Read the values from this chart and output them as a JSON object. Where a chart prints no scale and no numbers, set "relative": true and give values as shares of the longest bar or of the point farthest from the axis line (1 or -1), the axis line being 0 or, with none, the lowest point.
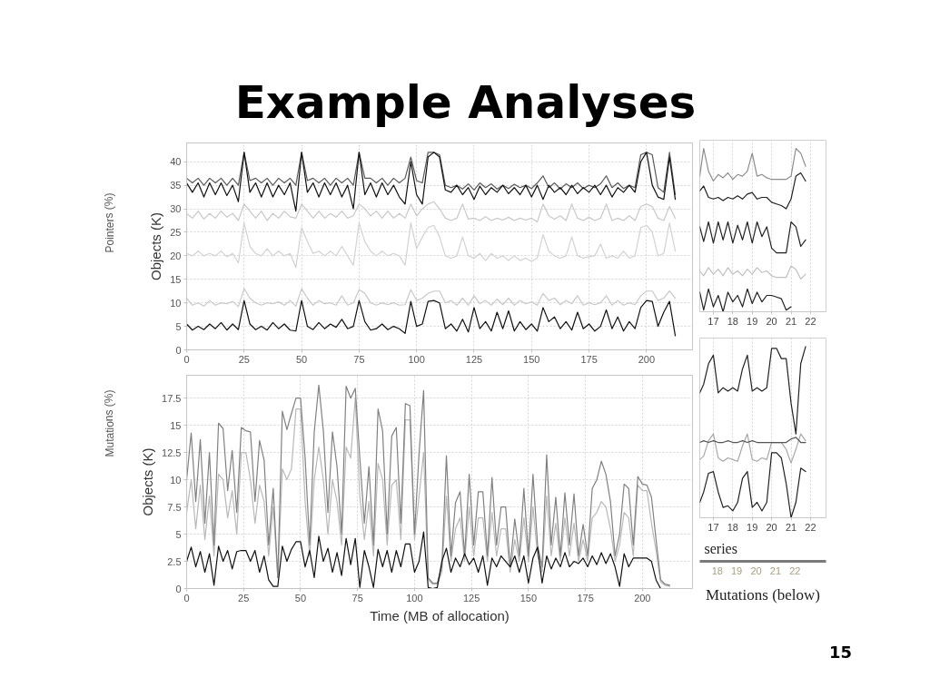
{
  "chart_data": [
    {
      "type": "line",
      "title": "Example Analyses",
      "ylabel": "Objects (K)",
      "xlim": [
        0,
        220
      ],
      "ylim": [
        0,
        44
      ],
      "xticks": [
        0,
        25,
        50,
        75,
        100,
        125,
        150,
        175,
        200
      ],
      "yticks": [
        0,
        5,
        10,
        15,
        20,
        25,
        30,
        35,
        40
      ],
      "grid": true,
      "x": [
        0,
        2.5,
        5,
        7.5,
        10,
        12.5,
        15,
        17.5,
        20,
        22.5,
        25,
        27.5,
        30,
        32.5,
        35,
        37.5,
        40,
        42.5,
        45,
        47.5,
        50,
        52.5,
        55,
        57.5,
        60,
        62.5,
        65,
        67.5,
        70,
        72.5,
        75,
        77.5,
        80,
        82.5,
        85,
        87.5,
        90,
        92.5,
        95,
        97.5,
        100,
        102.5,
        105,
        107.5,
        110,
        112.5,
        115,
        117.5,
        120,
        122.5,
        125,
        127.5,
        130,
        132.5,
        135,
        137.5,
        140,
        142.5,
        145,
        147.5,
        150,
        152.5,
        155,
        157.5,
        160,
        162.5,
        165,
        167.5,
        170,
        172.5,
        175,
        177.5,
        180,
        182.5,
        185,
        187.5,
        190,
        192.5,
        195,
        197.5,
        200,
        202.5,
        205,
        207.5,
        210,
        212.5
      ],
      "series": [
        {
          "color": "#c8c8c8",
          "values": [
            29,
            28,
            29.5,
            27.8,
            29,
            28,
            29.5,
            28.2,
            29,
            27.5,
            31,
            29.5,
            28,
            29.5,
            27.5,
            29,
            28,
            29.5,
            28.3,
            28,
            31,
            29.5,
            28,
            29.5,
            28,
            29,
            28.2,
            29.5,
            28,
            28.5,
            31,
            30,
            28.5,
            29.5,
            28,
            29.5,
            28,
            29,
            28,
            31,
            28.5,
            30,
            31,
            31.5,
            30,
            28,
            27.5,
            28,
            31,
            27.8,
            28,
            27.5,
            28.3,
            27.5,
            28,
            27.6,
            28.2,
            27.5,
            28,
            27.6,
            28,
            27.2,
            31,
            28.5,
            27.8,
            28.5,
            27.5,
            31,
            28,
            27.5,
            28.2,
            27.5,
            28,
            31,
            27.5,
            28,
            27.5,
            28.5,
            27.5,
            30.5,
            31,
            30.5,
            28,
            27.5,
            30.5,
            28
          ]
        },
        {
          "color": "#d2d2d2",
          "values": [
            20.5,
            20,
            21,
            20,
            20.5,
            20,
            21,
            19.8,
            20.5,
            18.5,
            27,
            22,
            20.5,
            20,
            21.5,
            20,
            21,
            20,
            20.5,
            17.5,
            26,
            23,
            20.5,
            21,
            20,
            21,
            20,
            22,
            20,
            18,
            27,
            23,
            21,
            20,
            21,
            20,
            20.5,
            20,
            18,
            27,
            21.5,
            24,
            26,
            26.5,
            24,
            20,
            19.5,
            20,
            24,
            20,
            19.5,
            20.5,
            19,
            20.5,
            19.5,
            20,
            19,
            20,
            19,
            19.5,
            18.8,
            19.5,
            24.5,
            21,
            20,
            19.5,
            20,
            24,
            20,
            19.5,
            19.8,
            20,
            22.5,
            19.5,
            20,
            19.5,
            21,
            19.5,
            20,
            26,
            26.5,
            25,
            20,
            20.5,
            27,
            21
          ]
        },
        {
          "color": "#c8c8c8",
          "values": [
            11,
            9.5,
            10,
            9.3,
            10.5,
            9.5,
            10,
            9.8,
            10.3,
            9.2,
            13,
            11,
            10,
            9.5,
            10,
            9.8,
            10.2,
            9.5,
            10.5,
            9.3,
            13,
            11,
            9.5,
            10.5,
            9.8,
            10,
            9.5,
            11.5,
            9.5,
            10,
            12.8,
            12,
            10,
            9.5,
            10,
            9.6,
            10,
            9.5,
            9.6,
            12.8,
            10.5,
            11,
            12,
            12.5,
            12.5,
            10,
            10.5,
            9.5,
            11,
            9.5,
            11.5,
            9.8,
            10.5,
            9.5,
            10.8,
            9.6,
            11,
            9.5,
            10.5,
            9.8,
            10.2,
            9.5,
            12,
            10.5,
            11,
            9.6,
            10.5,
            9.8,
            11.5,
            9.5,
            10,
            9.6,
            10,
            11.5,
            9.5,
            10.5,
            9.5,
            10,
            9.6,
            11.5,
            12.5,
            12.5,
            10.5,
            11,
            12.5,
            11
          ]
        },
        {
          "color": "#5a5a5a",
          "values": [
            36.5,
            35.5,
            36.5,
            35,
            36.5,
            35.5,
            36.5,
            35,
            36.5,
            35,
            42,
            36,
            36.5,
            35.5,
            36.5,
            35,
            36.5,
            35.5,
            36.5,
            35,
            42,
            36,
            36.5,
            35.5,
            36.5,
            35,
            36.5,
            35.5,
            36.5,
            35,
            42,
            36.5,
            36.5,
            35.5,
            36.5,
            35,
            36.5,
            35.5,
            36.5,
            41,
            36,
            35.5,
            42,
            42,
            41.5,
            35,
            34.5,
            35,
            34.2,
            35.3,
            34,
            35.5,
            34.5,
            35.3,
            34.2,
            35,
            34.3,
            35.2,
            34.5,
            35,
            34.3,
            35.5,
            37,
            34.5,
            35.5,
            34.2,
            35.3,
            34.5,
            35.5,
            34.3,
            35,
            34.5,
            35.3,
            37,
            34.5,
            35.5,
            34.3,
            35,
            34.5,
            41.5,
            42,
            41.5,
            34.5,
            33.5,
            42,
            33
          ]
        },
        {
          "color": "#111111",
          "values": [
            35.5,
            33.5,
            35.5,
            32.5,
            35.5,
            33,
            35.5,
            32.8,
            35,
            31.5,
            42,
            33.5,
            35.5,
            32.5,
            35.5,
            32.5,
            35,
            33,
            35.5,
            29.5,
            42,
            33.5,
            35.5,
            32.5,
            35.5,
            33,
            35.5,
            32.5,
            35,
            30,
            42,
            33,
            35.5,
            32.5,
            35.5,
            33,
            35,
            32.5,
            31,
            40,
            33,
            31,
            41,
            42,
            41,
            34,
            33.5,
            35,
            33,
            34.5,
            32,
            34.8,
            33,
            34.5,
            33.5,
            35,
            33.2,
            34.5,
            33,
            35,
            32.5,
            35,
            32,
            35,
            33.5,
            34.5,
            33,
            35,
            33.2,
            34.5,
            33.5,
            35,
            33,
            35,
            32.5,
            34.5,
            33.5,
            35,
            33.5,
            40,
            42,
            35,
            32.5,
            32,
            41,
            32
          ]
        },
        {
          "color": "#111111",
          "values": [
            5.5,
            4.2,
            5,
            4.3,
            5.5,
            4.5,
            5.8,
            4.2,
            5.5,
            4.3,
            10.5,
            5.5,
            4.3,
            5,
            4.2,
            5.8,
            4.5,
            5.5,
            4.2,
            4,
            10.5,
            5,
            4.3,
            5.8,
            4.5,
            5.5,
            4.8,
            6.5,
            4.5,
            5,
            10.5,
            6,
            4.2,
            4.5,
            5.5,
            4.3,
            5,
            4.5,
            3.5,
            10.3,
            5,
            5.5,
            10.3,
            10.5,
            10,
            4.5,
            5.5,
            4,
            6.5,
            3.8,
            9,
            4.5,
            6,
            4,
            8,
            4.5,
            8.3,
            4,
            6,
            4.3,
            5.5,
            4,
            9,
            6,
            7,
            4.5,
            6,
            4.2,
            8,
            4.5,
            5.5,
            4,
            5,
            8.5,
            4.5,
            7,
            4,
            6,
            4.5,
            9,
            10.5,
            10.3,
            5,
            8,
            10.3,
            3
          ]
        }
      ]
    },
    {
      "type": "line",
      "xlabel": "Time (MB of allocation)",
      "ylabel": "Objects (K)",
      "xlim": [
        0,
        222
      ],
      "ylim": [
        0,
        19.6
      ],
      "xticks": [
        0,
        25,
        50,
        75,
        100,
        125,
        150,
        175,
        200
      ],
      "yticks": [
        0,
        2.5,
        5,
        7.5,
        10,
        12.5,
        15,
        17.5
      ],
      "grid": true,
      "x": [
        0,
        2,
        4,
        6,
        8,
        10,
        12,
        14,
        16,
        18,
        20,
        22,
        24,
        26,
        28,
        30,
        32,
        34,
        36,
        38,
        40,
        42,
        44,
        46,
        48,
        50,
        52,
        54,
        56,
        58,
        60,
        62,
        64,
        66,
        68,
        70,
        72,
        74,
        76,
        78,
        80,
        82,
        84,
        86,
        88,
        90,
        92,
        94,
        96,
        98,
        100,
        102,
        104,
        106,
        108,
        110,
        112,
        114,
        116,
        118,
        120,
        122,
        124,
        126,
        128,
        130,
        132,
        134,
        136,
        138,
        140,
        142,
        144,
        146,
        148,
        150,
        152,
        154,
        156,
        158,
        160,
        162,
        164,
        166,
        168,
        170,
        172,
        174,
        176,
        178,
        180,
        182,
        184,
        186,
        188,
        190,
        192,
        194,
        196,
        198,
        200,
        202,
        204,
        206,
        208,
        210,
        212
      ],
      "series": [
        {
          "color": "#b8b8b8",
          "values": [
            7,
            10,
            5.5,
            9.5,
            4.5,
            8.5,
            3,
            10.5,
            10,
            6.5,
            9,
            5,
            12.5,
            12.5,
            10,
            6,
            9.5,
            8,
            3,
            7.5,
            1,
            11,
            10,
            11,
            16.5,
            16.5,
            8,
            3,
            10,
            13,
            10,
            5,
            10,
            8,
            4,
            13,
            12,
            17.5,
            8.5,
            4.5,
            8,
            3,
            11.5,
            10,
            4,
            9.5,
            10,
            4.5,
            15.5,
            15.5,
            4.5,
            8.5,
            12.5,
            0.8,
            0.4,
            0.4,
            1.5,
            8.5,
            2.5,
            5.5,
            6.5,
            2.5,
            7.5,
            3,
            6.5,
            6.5,
            2.5,
            7,
            3,
            5.5,
            5.5,
            1.5,
            4.5,
            2.5,
            6.5,
            2.5,
            7.5,
            3,
            1.5,
            8.5,
            3,
            6,
            2.5,
            6.5,
            3,
            6,
            2.5,
            4.5,
            2.5,
            6.5,
            7,
            8,
            7.5,
            5.5,
            2.5,
            4,
            7,
            6.5,
            3,
            9.5,
            9,
            9,
            6,
            3.5,
            0.6,
            0.3,
            0.2
          ]
        },
        {
          "color": "#808080",
          "values": [
            10,
            14.3,
            8,
            13.7,
            6,
            12.5,
            4,
            15.2,
            14.7,
            9,
            12.7,
            7,
            14.8,
            14.5,
            14.4,
            8,
            13.6,
            11.8,
            4,
            9.2,
            1,
            16.3,
            14.6,
            16.1,
            17.5,
            17.5,
            12,
            4,
            14.4,
            18.7,
            14.5,
            7,
            14.4,
            11.2,
            5,
            18.6,
            17.5,
            18.4,
            12,
            6,
            11.2,
            4,
            16.5,
            14.5,
            5,
            14,
            14.8,
            6,
            17,
            16.8,
            5,
            12.4,
            18.2,
            1,
            0.5,
            0.5,
            2,
            12.2,
            3,
            7.9,
            8.9,
            3,
            10.5,
            4,
            8.9,
            8.9,
            3,
            10.2,
            4,
            7.5,
            7.5,
            2,
            6.4,
            3,
            9.2,
            3,
            10.5,
            4,
            2,
            12.3,
            4,
            8.4,
            3,
            8.8,
            4,
            8.7,
            3,
            5.9,
            3,
            9.2,
            10,
            11.7,
            10.5,
            8,
            3,
            5,
            9.6,
            9.2,
            4,
            10.3,
            9.6,
            9.5,
            8.4,
            4.5,
            0.8,
            0.4,
            0.3
          ]
        },
        {
          "color": "#111111",
          "values": [
            2.5,
            3.8,
            2,
            3.4,
            1.5,
            3.2,
            0.3,
            3.9,
            2.5,
            3.5,
            1.8,
            3.4,
            3.5,
            3.5,
            2.5,
            3.5,
            1.5,
            3,
            0.8,
            0.2,
            0.2,
            3.9,
            2.5,
            3.6,
            4.3,
            4.3,
            2,
            3.5,
            1,
            4.8,
            2.5,
            3.7,
            1.5,
            3.3,
            1.2,
            4.6,
            2.2,
            4.6,
            0.1,
            3.5,
            2,
            0.1,
            3.6,
            2,
            3.5,
            1.5,
            3.5,
            2,
            4.1,
            4.1,
            1.5,
            2.5,
            5.2,
            0.1,
            0,
            0.1,
            2.5,
            3.7,
            1.5,
            2.8,
            2,
            3.2,
            2.2,
            2.8,
            1.5,
            3,
            0.3,
            2.8,
            2,
            3,
            2.5,
            2,
            3,
            1.5,
            3,
            0.5,
            2.8,
            3.8,
            0.5,
            3,
            1.8,
            2.8,
            2,
            3.3,
            2,
            2.5,
            2.3,
            2.8,
            2,
            3,
            2.2,
            3.3,
            2.3,
            3.2,
            2,
            0.2,
            3.2,
            2,
            2.8,
            2.8,
            2.8,
            2.8,
            2.5,
            0.8,
            0,
            0,
            0
          ]
        }
      ]
    },
    {
      "type": "line",
      "relative": true,
      "xlim": [
        16.3,
        22.8
      ],
      "xticks": [
        17,
        18,
        19,
        20,
        21,
        22
      ],
      "grid": "x",
      "x": [
        16.3,
        16.5,
        16.75,
        17,
        17.25,
        17.5,
        17.75,
        18,
        18.25,
        18.5,
        18.75,
        19,
        19.25,
        19.5,
        19.75,
        20,
        20.25,
        20.5,
        20.75,
        21,
        21.25,
        21.5,
        21.75
      ],
      "series": [
        {
          "color": "#c0c0c0",
          "values": [
            0.25,
            0.22,
            0.27,
            0.23,
            0.26,
            0.22,
            0.27,
            0.23,
            0.25,
            0.22,
            0.26,
            0.23,
            0.27,
            0.24,
            0.25,
            0.22,
            0.21,
            0.21,
            0.21,
            0.28,
            0.26,
            0.2,
            0.23
          ]
        },
        {
          "color": "#8c8c8c",
          "values": [
            0.83,
            1,
            0.86,
            0.8,
            0.84,
            0.82,
            0.85,
            0.81,
            0.84,
            0.83,
            0.86,
            0.97,
            0.83,
            0.84,
            0.82,
            0.81,
            0.81,
            0.81,
            0.81,
            0.83,
            1,
            0.97,
            0.89
          ]
        },
        {
          "color": "#222222",
          "values": [
            0.74,
            0.77,
            0.7,
            0.69,
            0.7,
            0.68,
            0.7,
            0.69,
            0.71,
            0.69,
            0.72,
            0.73,
            0.69,
            0.7,
            0.7,
            0.67,
            0.66,
            0.65,
            0.63,
            0.69,
            0.83,
            0.85,
            0.8
          ]
        },
        {
          "color": "#222222",
          "values": [
            0.52,
            0.43,
            0.55,
            0.42,
            0.55,
            0.44,
            0.55,
            0.42,
            0.53,
            0.44,
            0.55,
            0.42,
            0.55,
            0.46,
            0.52,
            0.39,
            0.36,
            0.36,
            0.36,
            0.55,
            0.52,
            0.4,
            0.44
          ]
        },
        {
          "color": "#222222",
          "values": [
            0.12,
            0.01,
            0.14,
            0.03,
            0.1,
            0,
            0.12,
            0.06,
            0.1,
            0.03,
            0.14,
            0.05,
            0.12,
            0.06,
            0.1,
            0.1,
            0.09,
            0.08,
            0.01,
            0.03,
            null,
            null,
            null
          ]
        }
      ]
    },
    {
      "type": "line",
      "relative": true,
      "xlim": [
        16.3,
        22.8
      ],
      "xticks": [
        17,
        18,
        19,
        20,
        21,
        22
      ],
      "x2lim": [
        17.1,
        23.6
      ],
      "x2ticks": [
        18,
        19,
        20,
        21,
        22
      ],
      "grid": "x",
      "annotations": [
        "series",
        "Mutations (below)"
      ],
      "x": [
        16.3,
        16.5,
        16.75,
        17,
        17.25,
        17.5,
        17.75,
        18,
        18.25,
        18.5,
        18.75,
        19,
        19.25,
        19.5,
        19.75,
        20,
        20.25,
        20.5,
        20.75,
        21,
        21.25,
        21.5,
        21.75
      ],
      "series": [
        {
          "color": "#a8a8a8",
          "values": [
            0.34,
            0.36,
            0.45,
            0.49,
            0.35,
            0.33,
            0.35,
            0.34,
            0.33,
            0.42,
            0.49,
            0.34,
            0.33,
            0.35,
            0.34,
            0.44,
            0.44,
            0.44,
            0.4,
            0.32,
            0.4,
            0.49,
            0.45
          ]
        },
        {
          "color": "#555555",
          "values": [
            0.44,
            0.45,
            0.44,
            0.45,
            0.44,
            0.44,
            0.45,
            0.44,
            0.44,
            0.45,
            0.44,
            0.45,
            0.44,
            0.44,
            0.44,
            0.44,
            0.44,
            0.44,
            0.44,
            0.46,
            0.47,
            0.44,
            0.44
          ]
        },
        {
          "color": "#222222",
          "values": [
            0.73,
            0.78,
            0.9,
            0.95,
            0.73,
            0.76,
            0.74,
            0.76,
            0.74,
            0.87,
            0.95,
            0.74,
            0.76,
            0.74,
            0.76,
            0.99,
            0.99,
            0.93,
            0.93,
            0.67,
            0.49,
            0.9,
            1
          ]
        },
        {
          "color": "#222222",
          "values": [
            0.09,
            0.15,
            0.26,
            0.27,
            0.15,
            0.06,
            0.07,
            0.04,
            0.09,
            0.23,
            0.27,
            0.06,
            0.09,
            0.04,
            0.09,
            0.38,
            0.38,
            0.35,
            0.2,
            0,
            0.09,
            0.29,
            0.27
          ]
        }
      ]
    },
    {
      "type": "other",
      "annotations": [
        "Pointers (%)",
        "Mutations (%)",
        "15"
      ]
    }
  ]
}
